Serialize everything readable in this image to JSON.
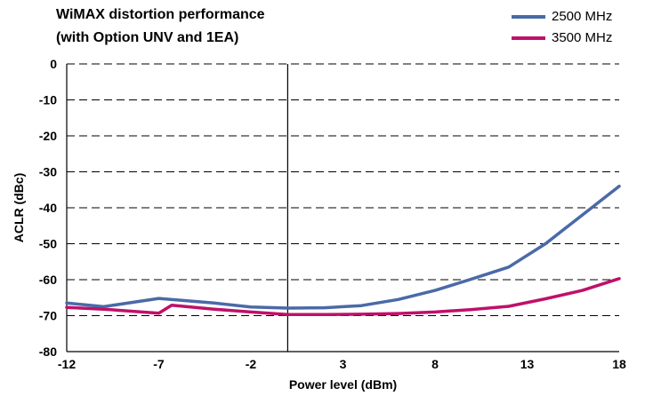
{
  "chart_data": {
    "type": "line",
    "title": "WiMAX distortion performance",
    "subtitle": "(with Option UNV and 1EA)",
    "xlabel": "Power level (dBm)",
    "ylabel": "ACLR (dBc)",
    "xlim": [
      -12,
      18
    ],
    "ylim": [
      -80,
      0
    ],
    "xticks": [
      -12,
      -7,
      -2,
      3,
      8,
      13,
      18
    ],
    "xtick_labels": [
      "-12",
      "-7",
      "-2",
      "3",
      "8",
      "13",
      "18"
    ],
    "yticks": [
      0,
      -10,
      -20,
      -30,
      -40,
      -50,
      -60,
      -70,
      -80
    ],
    "ytick_labels": [
      "0",
      "-10",
      "-20",
      "-30",
      "-40",
      "-50",
      "-60",
      "-70",
      "-80"
    ],
    "grid": "horizontal dashed",
    "vertical_marker_x": 0,
    "legend_position": "top-right",
    "series": [
      {
        "name": "2500 MHz",
        "color": "#4a6aa7",
        "x": [
          -12,
          -10,
          -7,
          -4,
          -2,
          0,
          2,
          4,
          6,
          8,
          10,
          12,
          14,
          16,
          18
        ],
        "y": [
          -66.5,
          -67.5,
          -65.2,
          -66.5,
          -67.6,
          -67.9,
          -67.8,
          -67.2,
          -65.5,
          -63,
          -59.8,
          -56.5,
          -50,
          -42,
          -34
        ]
      },
      {
        "name": "3500 MHz",
        "color": "#c0106a",
        "x": [
          -12,
          -10,
          -7,
          -6.3,
          -4,
          -2,
          0,
          2,
          4,
          6,
          8,
          10,
          12,
          14,
          16,
          18
        ],
        "y": [
          -67.7,
          -68.2,
          -69.3,
          -67.1,
          -68.2,
          -69,
          -69.7,
          -69.7,
          -69.6,
          -69.4,
          -69,
          -68.3,
          -67.4,
          -65.3,
          -63,
          -59.7
        ]
      }
    ]
  }
}
